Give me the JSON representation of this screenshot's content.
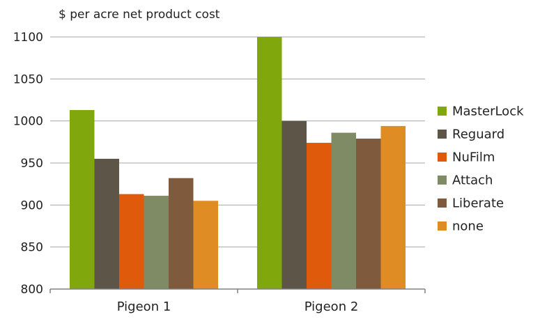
{
  "chart_data": {
    "type": "bar",
    "title": "$ per acre net product cost",
    "xlabel": "",
    "ylabel": "",
    "ylim": [
      800,
      1100
    ],
    "yticks": [
      800,
      850,
      900,
      950,
      1000,
      1050,
      1100
    ],
    "grid": true,
    "legend_position": "right",
    "categories": [
      "Pigeon 1",
      "Pigeon 2"
    ],
    "series": [
      {
        "name": "MasterLock",
        "color": "#80a80c",
        "values": [
          1013,
          1100
        ]
      },
      {
        "name": "Reguard",
        "color": "#5d5548",
        "values": [
          955,
          1000
        ]
      },
      {
        "name": "NuFilm",
        "color": "#e05a0c",
        "values": [
          913,
          974
        ]
      },
      {
        "name": "Attach",
        "color": "#7f8b64",
        "values": [
          911,
          986
        ]
      },
      {
        "name": "Liberate",
        "color": "#7f5a3c",
        "values": [
          932,
          979
        ]
      },
      {
        "name": "none",
        "color": "#e08c24",
        "values": [
          905,
          994
        ]
      }
    ]
  }
}
